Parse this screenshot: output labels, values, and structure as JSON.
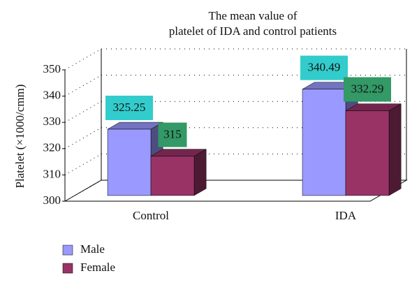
{
  "chart_data": {
    "type": "bar3d",
    "title": [
      "The mean value of",
      "platelet of IDA and control patients"
    ],
    "y_label": "Platelet (×1000/cmm)",
    "categories": [
      "Control",
      "IDA"
    ],
    "series": [
      {
        "name": "Male",
        "color": "#9999ff",
        "label_color": "#33cccc",
        "values": [
          325.25,
          340.49
        ]
      },
      {
        "name": "Female",
        "color": "#993366",
        "label_color": "#339966",
        "values": [
          315,
          332.29
        ]
      }
    ],
    "ylim": [
      300,
      350
    ],
    "yticks": [
      300,
      310,
      320,
      330,
      340,
      350
    ],
    "grid": true,
    "legend": "bottom-left"
  }
}
